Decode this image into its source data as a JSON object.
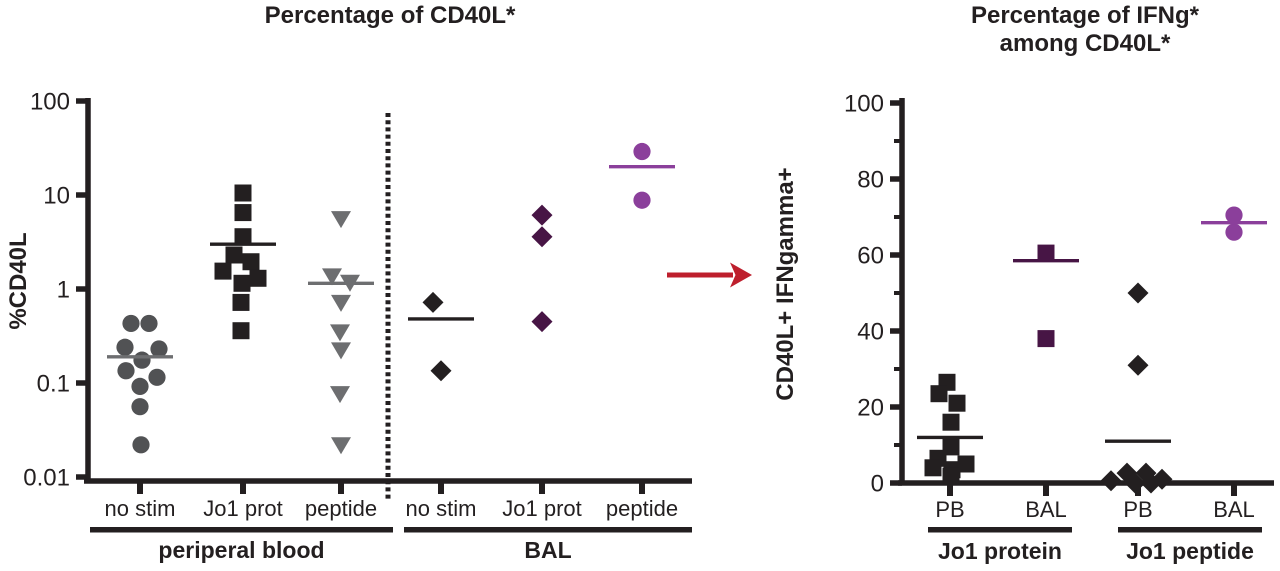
{
  "chart_data": [
    {
      "type": "scatter",
      "title": "Percentage of CD40L*",
      "ylabel": "%CD40L",
      "yscale": "log",
      "ylim": [
        0.01,
        100
      ],
      "ytick_values": [
        100,
        10,
        1,
        0.1,
        0.01
      ],
      "ytick_labels": [
        "100",
        "10",
        "1",
        "0.1",
        "0.01"
      ],
      "grid": false,
      "legend": "none",
      "divider_between_sections": true,
      "sections": [
        {
          "label": "periperal blood",
          "groups": [
            "no stim",
            "Jo1 prot",
            "peptide"
          ]
        },
        {
          "label": "BAL",
          "groups": [
            "no stim",
            "Jo1 prot",
            "peptide"
          ]
        }
      ],
      "groups": [
        {
          "label": "no stim",
          "section": "periperal blood",
          "marker": "circle",
          "color": "#515254",
          "median": 0.19,
          "median_color": "#6d6e70",
          "points": [
            [
              -9,
              0.43
            ],
            [
              9,
              0.43
            ],
            [
              -15,
              0.24
            ],
            [
              19,
              0.23
            ],
            [
              2,
              0.175
            ],
            [
              -14,
              0.135
            ],
            [
              17,
              0.115
            ],
            [
              0,
              0.092
            ],
            [
              0,
              0.056
            ],
            [
              1,
              0.022
            ]
          ]
        },
        {
          "label": "Jo1 prot",
          "section": "periperal blood",
          "marker": "square",
          "color": "#231f20",
          "median": 3.0,
          "median_color": "#231f20",
          "points": [
            [
              0,
              10.5
            ],
            [
              0,
              6.5
            ],
            [
              0,
              3.6
            ],
            [
              -9,
              2.3
            ],
            [
              8,
              1.95
            ],
            [
              -20,
              1.55
            ],
            [
              15,
              1.3
            ],
            [
              -1,
              1.15
            ],
            [
              -2,
              0.72
            ],
            [
              -2,
              0.36
            ]
          ]
        },
        {
          "label": "peptide",
          "section": "periperal blood",
          "marker": "triangle-down",
          "color": "#6d6e70",
          "median": 1.15,
          "median_color": "#6d6e70",
          "points": [
            [
              0,
              5.6
            ],
            [
              -9,
              1.38
            ],
            [
              9,
              1.18
            ],
            [
              0,
              0.72
            ],
            [
              -1,
              0.35
            ],
            [
              0,
              0.225
            ],
            [
              -1,
              0.077
            ],
            [
              0,
              0.022
            ]
          ]
        },
        {
          "label": "no stim",
          "section": "BAL",
          "marker": "diamond",
          "color": "#231f20",
          "median": 0.48,
          "median_color": "#231f20",
          "points": [
            [
              -8,
              0.72
            ],
            [
              0,
              0.135
            ]
          ]
        },
        {
          "label": "Jo1 prot",
          "section": "BAL",
          "marker": "diamond",
          "color": "#471545",
          "median": null,
          "median_color": "#471545",
          "points": [
            [
              0,
              6.1
            ],
            [
              0,
              3.6
            ],
            [
              0,
              0.45
            ]
          ]
        },
        {
          "label": "peptide",
          "section": "BAL",
          "marker": "circle",
          "color": "#8b3f9b",
          "median": 20,
          "median_color": "#8b3f9b",
          "points": [
            [
              0,
              29
            ],
            [
              0,
              8.8
            ]
          ]
        }
      ]
    },
    {
      "type": "scatter",
      "title": "Percentage of IFNg* among CD40L*",
      "title_lines": [
        "Percentage of IFNg*",
        "among CD40L*"
      ],
      "ylabel": "CD40L+ IFNgamma+",
      "yscale": "linear",
      "ylim": [
        0,
        100
      ],
      "ytick_values": [
        100,
        80,
        60,
        40,
        20,
        0
      ],
      "ytick_labels": [
        "100",
        "80",
        "60",
        "40",
        "20",
        "0"
      ],
      "ytick_minor": [
        10,
        30,
        50,
        70,
        90
      ],
      "grid": false,
      "legend": "none",
      "divider_between_sections": false,
      "sections": [
        {
          "label": "Jo1 protein",
          "groups": [
            "PB",
            "BAL"
          ]
        },
        {
          "label": "Jo1 peptide",
          "groups": [
            "PB",
            "BAL"
          ]
        }
      ],
      "groups": [
        {
          "label": "PB",
          "section": "Jo1 protein",
          "marker": "square",
          "color": "#231f20",
          "median": 12,
          "median_color": "#231f20",
          "points": [
            [
              -3,
              26.5
            ],
            [
              -11,
              23.5
            ],
            [
              7,
              21
            ],
            [
              1,
              16
            ],
            [
              1,
              9.5
            ],
            [
              -12,
              6.5
            ],
            [
              16,
              5
            ],
            [
              -17,
              4
            ],
            [
              2,
              3.5
            ],
            [
              1,
              1.8
            ]
          ]
        },
        {
          "label": "BAL",
          "section": "Jo1 protein",
          "marker": "square",
          "color": "#471545",
          "median": 58.5,
          "median_color": "#471545",
          "points": [
            [
              0,
              60.5
            ],
            [
              0,
              38
            ]
          ]
        },
        {
          "label": "PB",
          "section": "Jo1 peptide",
          "marker": "diamond",
          "color": "#231f20",
          "median": 11,
          "median_color": "#231f20",
          "points": [
            [
              0,
              50
            ],
            [
              0,
              31
            ],
            [
              -27,
              0.6
            ],
            [
              -11,
              2.6
            ],
            [
              -3,
              0
            ],
            [
              8,
              2.6
            ],
            [
              13,
              0
            ],
            [
              24,
              1
            ]
          ]
        },
        {
          "label": "BAL",
          "section": "Jo1 peptide",
          "marker": "circle",
          "color": "#8b3f9b",
          "median": 68.5,
          "median_color": "#8b3f9b",
          "points": [
            [
              0,
              70.5
            ],
            [
              0,
              66
            ]
          ]
        }
      ]
    }
  ],
  "annotations": {
    "arrow": {
      "direction": "right",
      "color": "#be1f2d"
    }
  },
  "colors": {
    "axis": "#231f20",
    "black_marker": "#231f20",
    "gray_circle": "#515254",
    "gray_triangle": "#6d6e70",
    "dark_plum": "#471545",
    "purple": "#8b3f9b",
    "arrow_red": "#be1f2d"
  }
}
